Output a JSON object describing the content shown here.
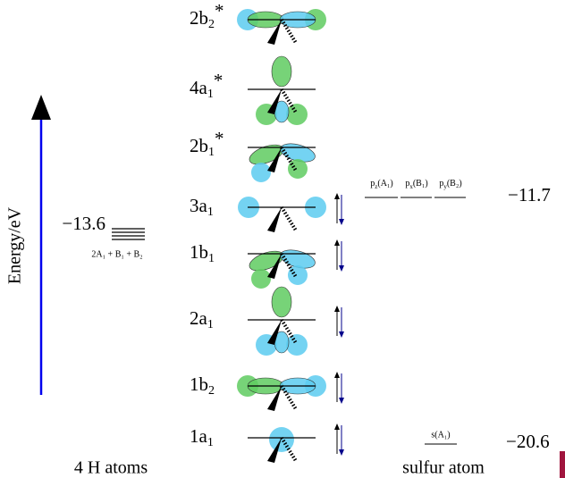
{
  "axis_label": "Energy/eV",
  "hydrogen": {
    "energy": "−13.6",
    "symmetry": "2A₁ + B₁ + B₂",
    "caption": "4 H atoms"
  },
  "sulfur": {
    "p_orbitals": [
      {
        "main": "p",
        "sub": "z",
        "tail": "(A₁)"
      },
      {
        "main": "p",
        "sub": "x",
        "tail": "(B₁)"
      },
      {
        "main": "p",
        "sub": "y",
        "tail": "(B₂)"
      }
    ],
    "p_energy": "−11.7",
    "s_orbital": "s(A₁)",
    "s_energy": "−20.6",
    "caption": "sulfur atom"
  },
  "orbitals": [
    {
      "main": "2b",
      "sub": "2",
      "sup": "*"
    },
    {
      "main": "4a",
      "sub": "1",
      "sup": "*"
    },
    {
      "main": "2b",
      "sub": "1",
      "sup": "*"
    },
    {
      "main": "3a",
      "sub": "1"
    },
    {
      "main": "1b",
      "sub": "1"
    },
    {
      "main": "2a",
      "sub": "1"
    },
    {
      "main": "1b",
      "sub": "2"
    },
    {
      "main": "1a",
      "sub": "1"
    }
  ]
}
